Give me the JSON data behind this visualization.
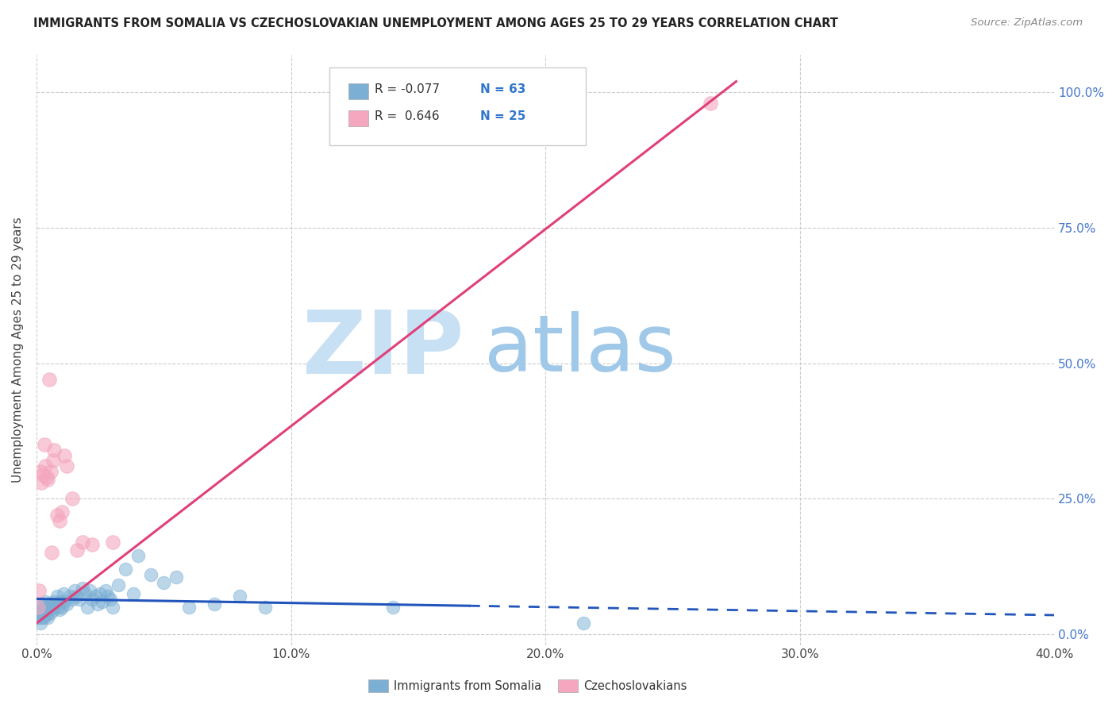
{
  "title": "IMMIGRANTS FROM SOMALIA VS CZECHOSLOVAKIAN UNEMPLOYMENT AMONG AGES 25 TO 29 YEARS CORRELATION CHART",
  "source": "Source: ZipAtlas.com",
  "xlabel_ticks": [
    "0.0%",
    "10.0%",
    "20.0%",
    "30.0%",
    "40.0%"
  ],
  "xlabel_vals": [
    0,
    10,
    20,
    30,
    40
  ],
  "ylabel_ticks": [
    "0.0%",
    "25.0%",
    "50.0%",
    "75.0%",
    "100.0%"
  ],
  "ylabel_vals": [
    0,
    25,
    50,
    75,
    100
  ],
  "ylabel_label": "Unemployment Among Ages 25 to 29 years",
  "legend_r1": "R = -0.077",
  "legend_n1": "N = 63",
  "legend_r2": "R =  0.646",
  "legend_n2": "N = 25",
  "blue_color": "#7bafd4",
  "pink_color": "#f4a7bf",
  "trend_blue": "#2255bb",
  "trend_pink": "#e0407a",
  "watermark_zip": "#c8e0f4",
  "watermark_atlas": "#a0c8e8",
  "blue_dots_x": [
    0.05,
    0.08,
    0.1,
    0.12,
    0.15,
    0.18,
    0.2,
    0.22,
    0.25,
    0.28,
    0.3,
    0.32,
    0.35,
    0.38,
    0.4,
    0.42,
    0.45,
    0.48,
    0.5,
    0.55,
    0.6,
    0.65,
    0.7,
    0.75,
    0.8,
    0.85,
    0.9,
    0.95,
    1.0,
    1.05,
    1.1,
    1.2,
    1.3,
    1.4,
    1.5,
    1.6,
    1.7,
    1.8,
    1.9,
    2.0,
    2.1,
    2.2,
    2.3,
    2.4,
    2.5,
    2.6,
    2.7,
    2.8,
    2.9,
    3.0,
    3.2,
    3.5,
    3.8,
    4.0,
    4.5,
    5.0,
    5.5,
    6.0,
    7.0,
    8.0,
    9.0,
    14.0,
    21.5
  ],
  "blue_dots_y": [
    3.0,
    4.0,
    5.0,
    3.5,
    2.0,
    4.5,
    3.0,
    5.5,
    4.0,
    3.0,
    5.0,
    4.5,
    6.0,
    3.5,
    4.0,
    5.0,
    3.0,
    4.5,
    5.5,
    4.0,
    5.0,
    4.5,
    6.0,
    5.5,
    7.0,
    5.0,
    4.5,
    6.0,
    5.0,
    7.5,
    6.0,
    5.5,
    7.0,
    6.5,
    8.0,
    7.0,
    6.5,
    8.5,
    7.5,
    5.0,
    8.0,
    6.5,
    7.0,
    5.5,
    7.5,
    6.0,
    8.0,
    7.0,
    6.5,
    5.0,
    9.0,
    12.0,
    7.5,
    14.5,
    11.0,
    9.5,
    10.5,
    5.0,
    5.5,
    7.0,
    5.0,
    5.0,
    2.0
  ],
  "pink_dots_x": [
    0.05,
    0.1,
    0.15,
    0.2,
    0.25,
    0.3,
    0.35,
    0.4,
    0.45,
    0.5,
    0.55,
    0.6,
    0.65,
    0.7,
    0.8,
    0.9,
    1.0,
    1.1,
    1.2,
    1.4,
    1.6,
    1.8,
    2.2,
    3.0,
    26.5
  ],
  "pink_dots_y": [
    5.0,
    8.0,
    30.0,
    28.0,
    29.5,
    35.0,
    31.0,
    29.0,
    28.5,
    47.0,
    30.0,
    15.0,
    32.0,
    34.0,
    22.0,
    21.0,
    22.5,
    33.0,
    31.0,
    25.0,
    15.5,
    17.0,
    16.5,
    17.0,
    98.0
  ],
  "blue_trend_x": [
    0.0,
    40.0
  ],
  "blue_trend_y": [
    6.5,
    3.5
  ],
  "blue_solid_end": 17.0,
  "pink_trend_x": [
    0.0,
    27.5
  ],
  "pink_trend_y": [
    2.0,
    102.0
  ],
  "xlim": [
    0,
    40
  ],
  "ylim": [
    -2,
    107
  ]
}
